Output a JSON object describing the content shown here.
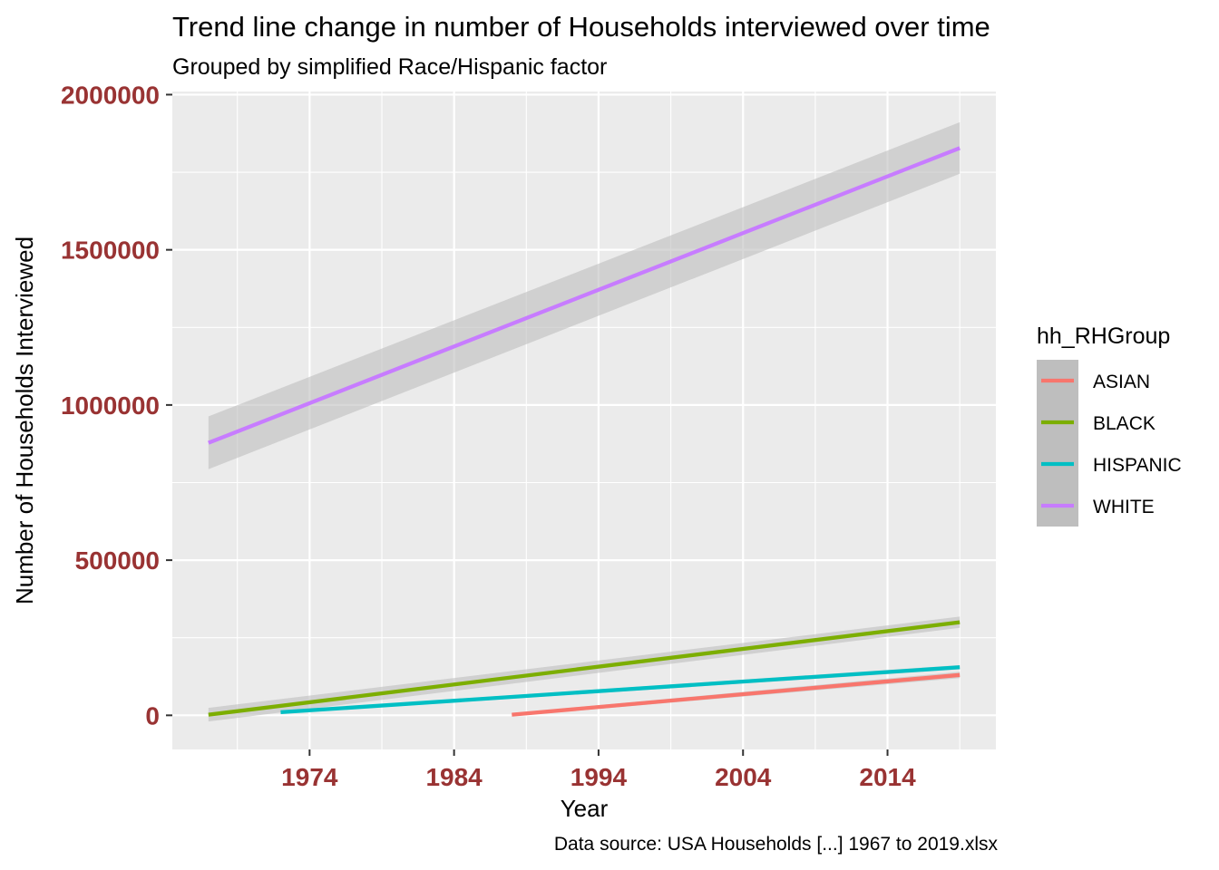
{
  "chart_data": {
    "type": "line",
    "title": "Trend line change in number of Households interviewed over time",
    "subtitle": "Grouped by simplified Race/Hispanic factor",
    "caption": "Data source: USA Households [...] 1967 to 2019.xlsx",
    "xlabel": "Year",
    "ylabel": "Number of Households Interviewed",
    "xlim": [
      1964.5,
      2021.5
    ],
    "ylim": [
      -110000,
      2010000
    ],
    "x_ticks": [
      1974,
      1984,
      1994,
      2004,
      2014
    ],
    "x_tick_labels": [
      "1974",
      "1984",
      "1994",
      "2004",
      "2014"
    ],
    "y_ticks": [
      0,
      500000,
      1000000,
      1500000,
      2000000
    ],
    "y_tick_labels": [
      "0",
      "500000",
      "1000000",
      "1500000",
      "2000000"
    ],
    "grid": true,
    "legend_position": "right",
    "legend_title": "hh_RHGroup",
    "panel_color": "#EBEBEB",
    "band_color": "#BEBEBE",
    "series": [
      {
        "name": "ASIAN",
        "color": "#F8766D",
        "x": [
          1988,
          2019
        ],
        "y": [
          2000,
          130000
        ],
        "se_lower": [
          -3000,
          120000
        ],
        "se_upper": [
          7000,
          140000
        ]
      },
      {
        "name": "BLACK",
        "color": "#7CAE00",
        "x": [
          1967,
          2019
        ],
        "y": [
          2000,
          300000
        ],
        "se_lower": [
          -20000,
          282000
        ],
        "se_upper": [
          24000,
          318000
        ]
      },
      {
        "name": "HISPANIC",
        "color": "#00BFC4",
        "x": [
          1972,
          2019
        ],
        "y": [
          10000,
          155000
        ],
        "se_lower": [
          5000,
          148000
        ],
        "se_upper": [
          15000,
          162000
        ]
      },
      {
        "name": "WHITE",
        "color": "#C77CFF",
        "x": [
          1967,
          2019
        ],
        "y": [
          878000,
          1828000
        ],
        "se_lower": [
          793000,
          1745000
        ],
        "se_upper": [
          963000,
          1911000
        ]
      }
    ]
  }
}
